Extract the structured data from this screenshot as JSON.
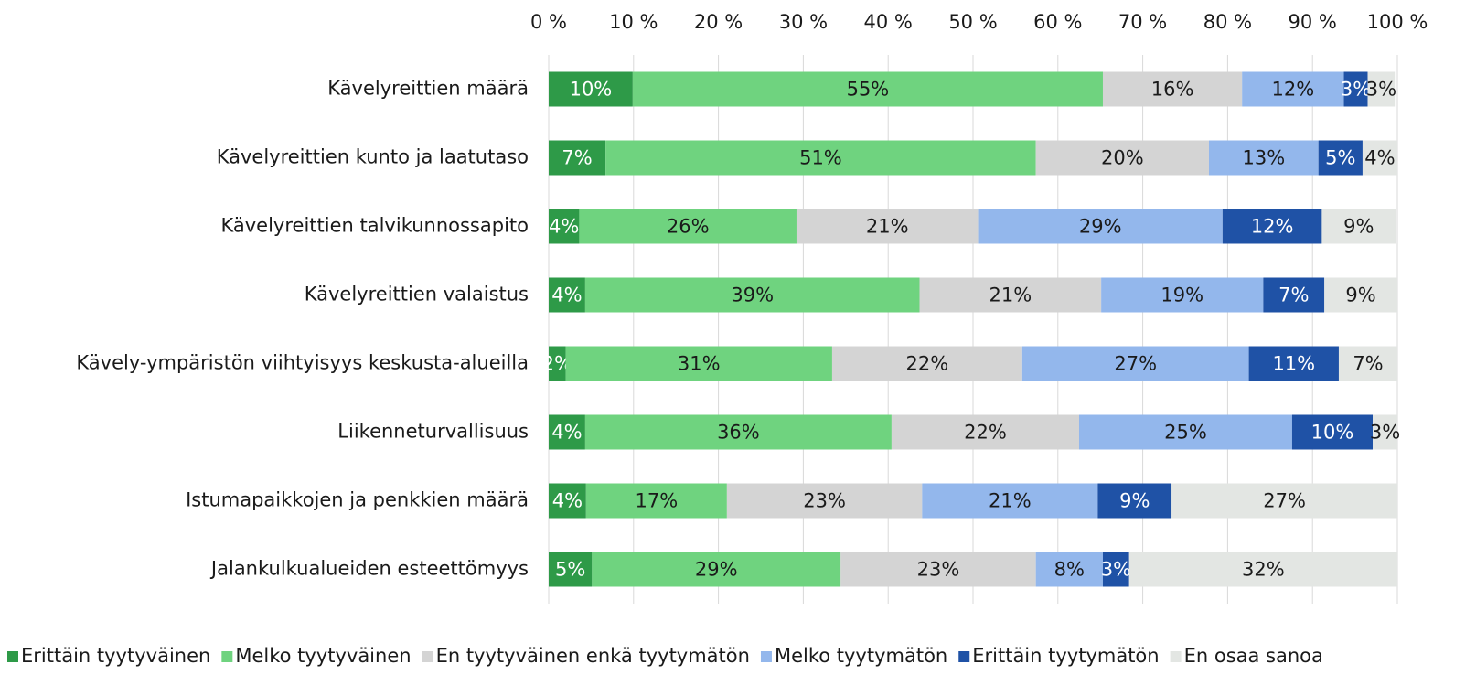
{
  "chart_data": {
    "type": "stacked_barh",
    "categories": [
      "Kävelyreittien määrä",
      "Kävelyreittien kunto ja laatutaso",
      "Kävelyreittien talvikunnossapito",
      "Kävelyreittien valaistus",
      "Kävely-ympäristön viihtyisyys keskusta-alueilla",
      "Liikenneturvallisuus",
      "Istumapaikkojen ja penkkien määrä",
      "Jalankulkualueiden esteettömyys"
    ],
    "series": [
      {
        "name": "Erittäin tyytyväinen",
        "color": "#2e9a48",
        "label_color": "#ffffff",
        "values": [
          9.9,
          6.7,
          3.6,
          4.3,
          2.0,
          4.3,
          4.4,
          5.1
        ],
        "value_labels": [
          "10%",
          "7%",
          "4%",
          "4%",
          "2%",
          "4%",
          "4%",
          "5%"
        ]
      },
      {
        "name": "Melko tyytyväinen",
        "color": "#6fd37f",
        "label_color": "#1a1a1a",
        "values": [
          55.4,
          50.7,
          25.6,
          39.4,
          31.4,
          36.1,
          16.6,
          29.3
        ],
        "value_labels": [
          "55%",
          "51%",
          "26%",
          "39%",
          "31%",
          "36%",
          "17%",
          "29%"
        ]
      },
      {
        "name": "En tyytyväinen enkä tyytymätön",
        "color": "#d4d4d4",
        "label_color": "#1a1a1a",
        "values": [
          16.4,
          20.4,
          21.4,
          21.4,
          22.4,
          22.1,
          23.0,
          23.0
        ],
        "value_labels": [
          "16%",
          "20%",
          "21%",
          "21%",
          "22%",
          "22%",
          "23%",
          "23%"
        ]
      },
      {
        "name": "Melko tyytymätön",
        "color": "#93b7ec",
        "label_color": "#1a1a1a",
        "values": [
          12.0,
          12.9,
          28.8,
          19.1,
          26.7,
          25.1,
          20.7,
          7.9
        ],
        "value_labels": [
          "12%",
          "13%",
          "29%",
          "19%",
          "27%",
          "25%",
          "21%",
          "8%"
        ]
      },
      {
        "name": "Erittäin tyytymätön",
        "color": "#1f52a6",
        "label_color": "#ffffff",
        "values": [
          2.8,
          5.2,
          11.7,
          7.2,
          10.6,
          9.5,
          8.7,
          3.1
        ],
        "value_labels": [
          "3%",
          "5%",
          "12%",
          "7%",
          "11%",
          "10%",
          "9%",
          "3%"
        ]
      },
      {
        "name": "En osaa sanoa",
        "color": "#e3e6e3",
        "label_color": "#1a1a1a",
        "values": [
          3.2,
          4.1,
          8.7,
          8.6,
          6.9,
          2.9,
          26.6,
          31.6
        ],
        "value_labels": [
          "3%",
          "4%",
          "9%",
          "9%",
          "7%",
          "3%",
          "27%",
          "32%"
        ]
      }
    ],
    "xlim": [
      0,
      100
    ],
    "xticks": [
      {
        "value": 0,
        "label": "0 %"
      },
      {
        "value": 10,
        "label": "10 %"
      },
      {
        "value": 20,
        "label": "20 %"
      },
      {
        "value": 30,
        "label": "30 %"
      },
      {
        "value": 40,
        "label": "40 %"
      },
      {
        "value": 50,
        "label": "50 %"
      },
      {
        "value": 60,
        "label": "60 %"
      },
      {
        "value": 70,
        "label": "70 %"
      },
      {
        "value": 80,
        "label": "80 %"
      },
      {
        "value": 90,
        "label": "90 %"
      },
      {
        "value": 100,
        "label": "100 %"
      }
    ],
    "grid": true,
    "legend": "bottom"
  }
}
